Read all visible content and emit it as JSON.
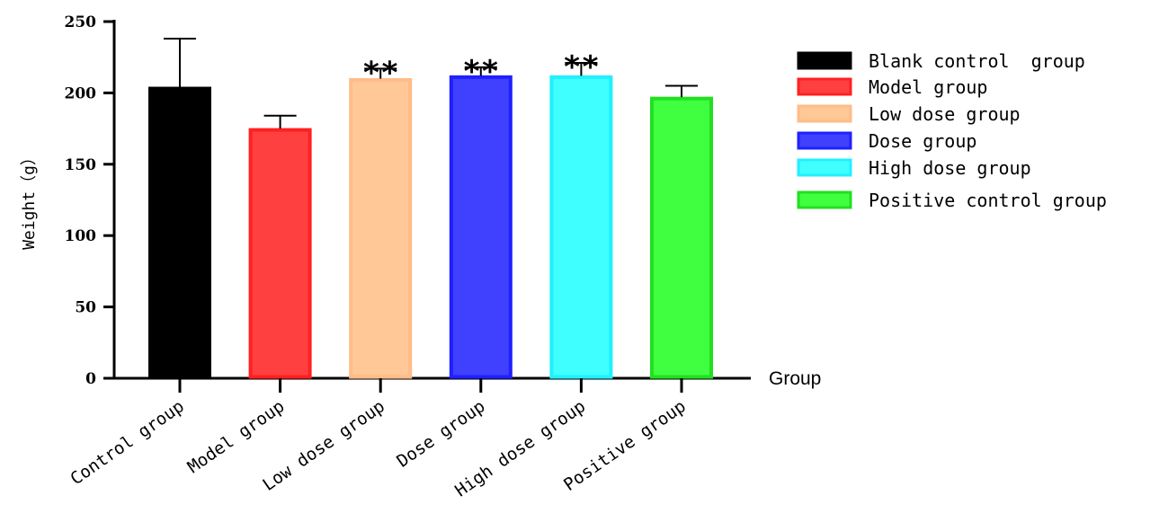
{
  "chart_data": {
    "type": "bar",
    "ylabel": "Weight（g）",
    "xlabel": "Group",
    "ylim": [
      0,
      250
    ],
    "yticks": [
      0,
      50,
      100,
      150,
      200,
      250
    ],
    "categories": [
      "Control group",
      "Model group",
      "Low dose group",
      "Dose group",
      "High dose group",
      "Positive group"
    ],
    "values": [
      204,
      175,
      210,
      212,
      212,
      197
    ],
    "errors": [
      34,
      9,
      7,
      6,
      9,
      8
    ],
    "significance": [
      "",
      "",
      "**",
      "**",
      "**",
      ""
    ],
    "colors": [
      "#000000",
      "#ff4040",
      "#ffc896",
      "#4040ff",
      "#40ffff",
      "#40ff40"
    ],
    "edge_colors": [
      "#000000",
      "#ff2020",
      "#ffbb88",
      "#2020ff",
      "#20f0ff",
      "#20e020"
    ],
    "legend": {
      "position": "right",
      "entries": [
        "Blank control  group",
        "Model group",
        "Low dose group",
        "Dose group",
        "High dose group",
        "Positive control group"
      ]
    },
    "grid": false
  }
}
